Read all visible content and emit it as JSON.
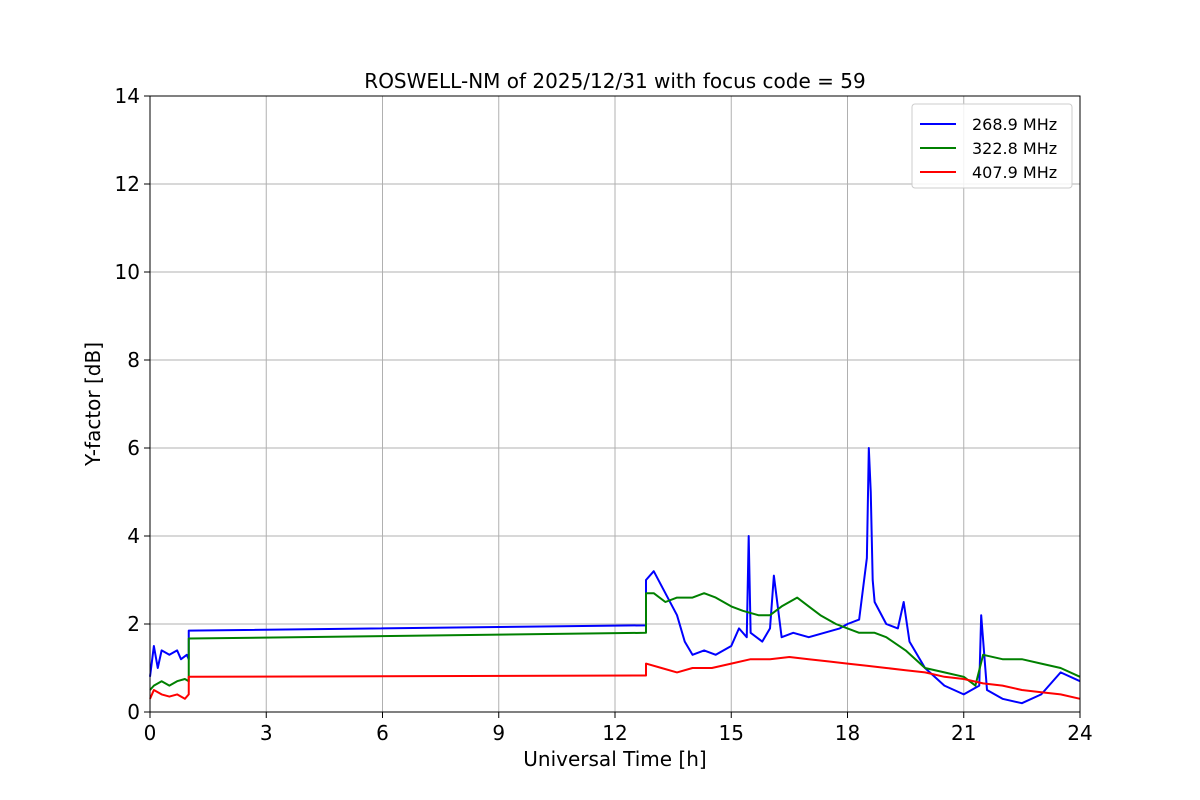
{
  "chart_data": {
    "type": "line",
    "title": "ROSWELL-NM of 2025/12/31 with focus code = 59",
    "xlabel": "Universal Time [h]",
    "ylabel": "Y-factor [dB]",
    "xlim": [
      0,
      24
    ],
    "ylim": [
      0,
      14
    ],
    "xticks": [
      0,
      3,
      6,
      9,
      12,
      15,
      18,
      21,
      24
    ],
    "yticks": [
      0,
      2,
      4,
      6,
      8,
      10,
      12,
      14
    ],
    "grid": true,
    "legend_position": "top-right",
    "series": [
      {
        "name": "268.9 MHz",
        "color": "#0000ff",
        "x": [
          0,
          0.1,
          0.2,
          0.3,
          0.5,
          0.7,
          0.8,
          0.95,
          1.0,
          1.0,
          12.8,
          12.8,
          13.0,
          13.3,
          13.6,
          13.8,
          14.0,
          14.3,
          14.6,
          15.0,
          15.2,
          15.4,
          15.45,
          15.5,
          15.8,
          16.0,
          16.1,
          16.3,
          16.6,
          17.0,
          17.4,
          17.8,
          18.0,
          18.3,
          18.5,
          18.55,
          18.6,
          18.65,
          18.7,
          19.0,
          19.3,
          19.45,
          19.6,
          20.0,
          20.5,
          21.0,
          21.4,
          21.45,
          21.6,
          22.0,
          22.5,
          23.0,
          23.5,
          24.0
        ],
        "y": [
          0.8,
          1.5,
          1.0,
          1.4,
          1.3,
          1.4,
          1.2,
          1.3,
          1.2,
          1.85,
          1.97,
          3.0,
          3.2,
          2.7,
          2.2,
          1.6,
          1.3,
          1.4,
          1.3,
          1.5,
          1.9,
          1.7,
          4.0,
          1.8,
          1.6,
          1.9,
          3.1,
          1.7,
          1.8,
          1.7,
          1.8,
          1.9,
          2.0,
          2.1,
          3.5,
          6.0,
          5.0,
          3.0,
          2.5,
          2.0,
          1.9,
          2.5,
          1.6,
          1.0,
          0.6,
          0.4,
          0.6,
          2.2,
          0.5,
          0.3,
          0.2,
          0.4,
          0.9,
          0.7
        ]
      },
      {
        "name": "322.8 MHz",
        "color": "#008000",
        "x": [
          0,
          0.1,
          0.3,
          0.5,
          0.7,
          0.9,
          1.0,
          1.0,
          12.8,
          12.8,
          13.0,
          13.3,
          13.6,
          14.0,
          14.3,
          14.6,
          15.0,
          15.3,
          15.7,
          16.0,
          16.3,
          16.7,
          17.0,
          17.3,
          17.7,
          18.0,
          18.3,
          18.7,
          19.0,
          19.5,
          20.0,
          20.5,
          21.0,
          21.3,
          21.5,
          22.0,
          22.5,
          23.0,
          23.5,
          24.0
        ],
        "y": [
          0.5,
          0.6,
          0.7,
          0.6,
          0.7,
          0.75,
          0.7,
          1.67,
          1.8,
          2.7,
          2.7,
          2.5,
          2.6,
          2.6,
          2.7,
          2.6,
          2.4,
          2.3,
          2.2,
          2.2,
          2.4,
          2.6,
          2.4,
          2.2,
          2.0,
          1.9,
          1.8,
          1.8,
          1.7,
          1.4,
          1.0,
          0.9,
          0.8,
          0.6,
          1.3,
          1.2,
          1.2,
          1.1,
          1.0,
          0.8
        ]
      },
      {
        "name": "407.9 MHz",
        "color": "#ff0000",
        "x": [
          0,
          0.1,
          0.3,
          0.5,
          0.7,
          0.9,
          1.0,
          1.0,
          12.8,
          12.8,
          13.2,
          13.6,
          14.0,
          14.5,
          15.0,
          15.5,
          16.0,
          16.5,
          17.0,
          17.5,
          18.0,
          18.5,
          19.0,
          19.5,
          20.0,
          20.5,
          21.0,
          21.5,
          22.0,
          22.5,
          23.0,
          23.5,
          24.0
        ],
        "y": [
          0.3,
          0.5,
          0.4,
          0.35,
          0.4,
          0.3,
          0.4,
          0.8,
          0.83,
          1.1,
          1.0,
          0.9,
          1.0,
          1.0,
          1.1,
          1.2,
          1.2,
          1.25,
          1.2,
          1.15,
          1.1,
          1.05,
          1.0,
          0.95,
          0.9,
          0.8,
          0.75,
          0.65,
          0.6,
          0.5,
          0.45,
          0.4,
          0.3
        ]
      }
    ]
  }
}
